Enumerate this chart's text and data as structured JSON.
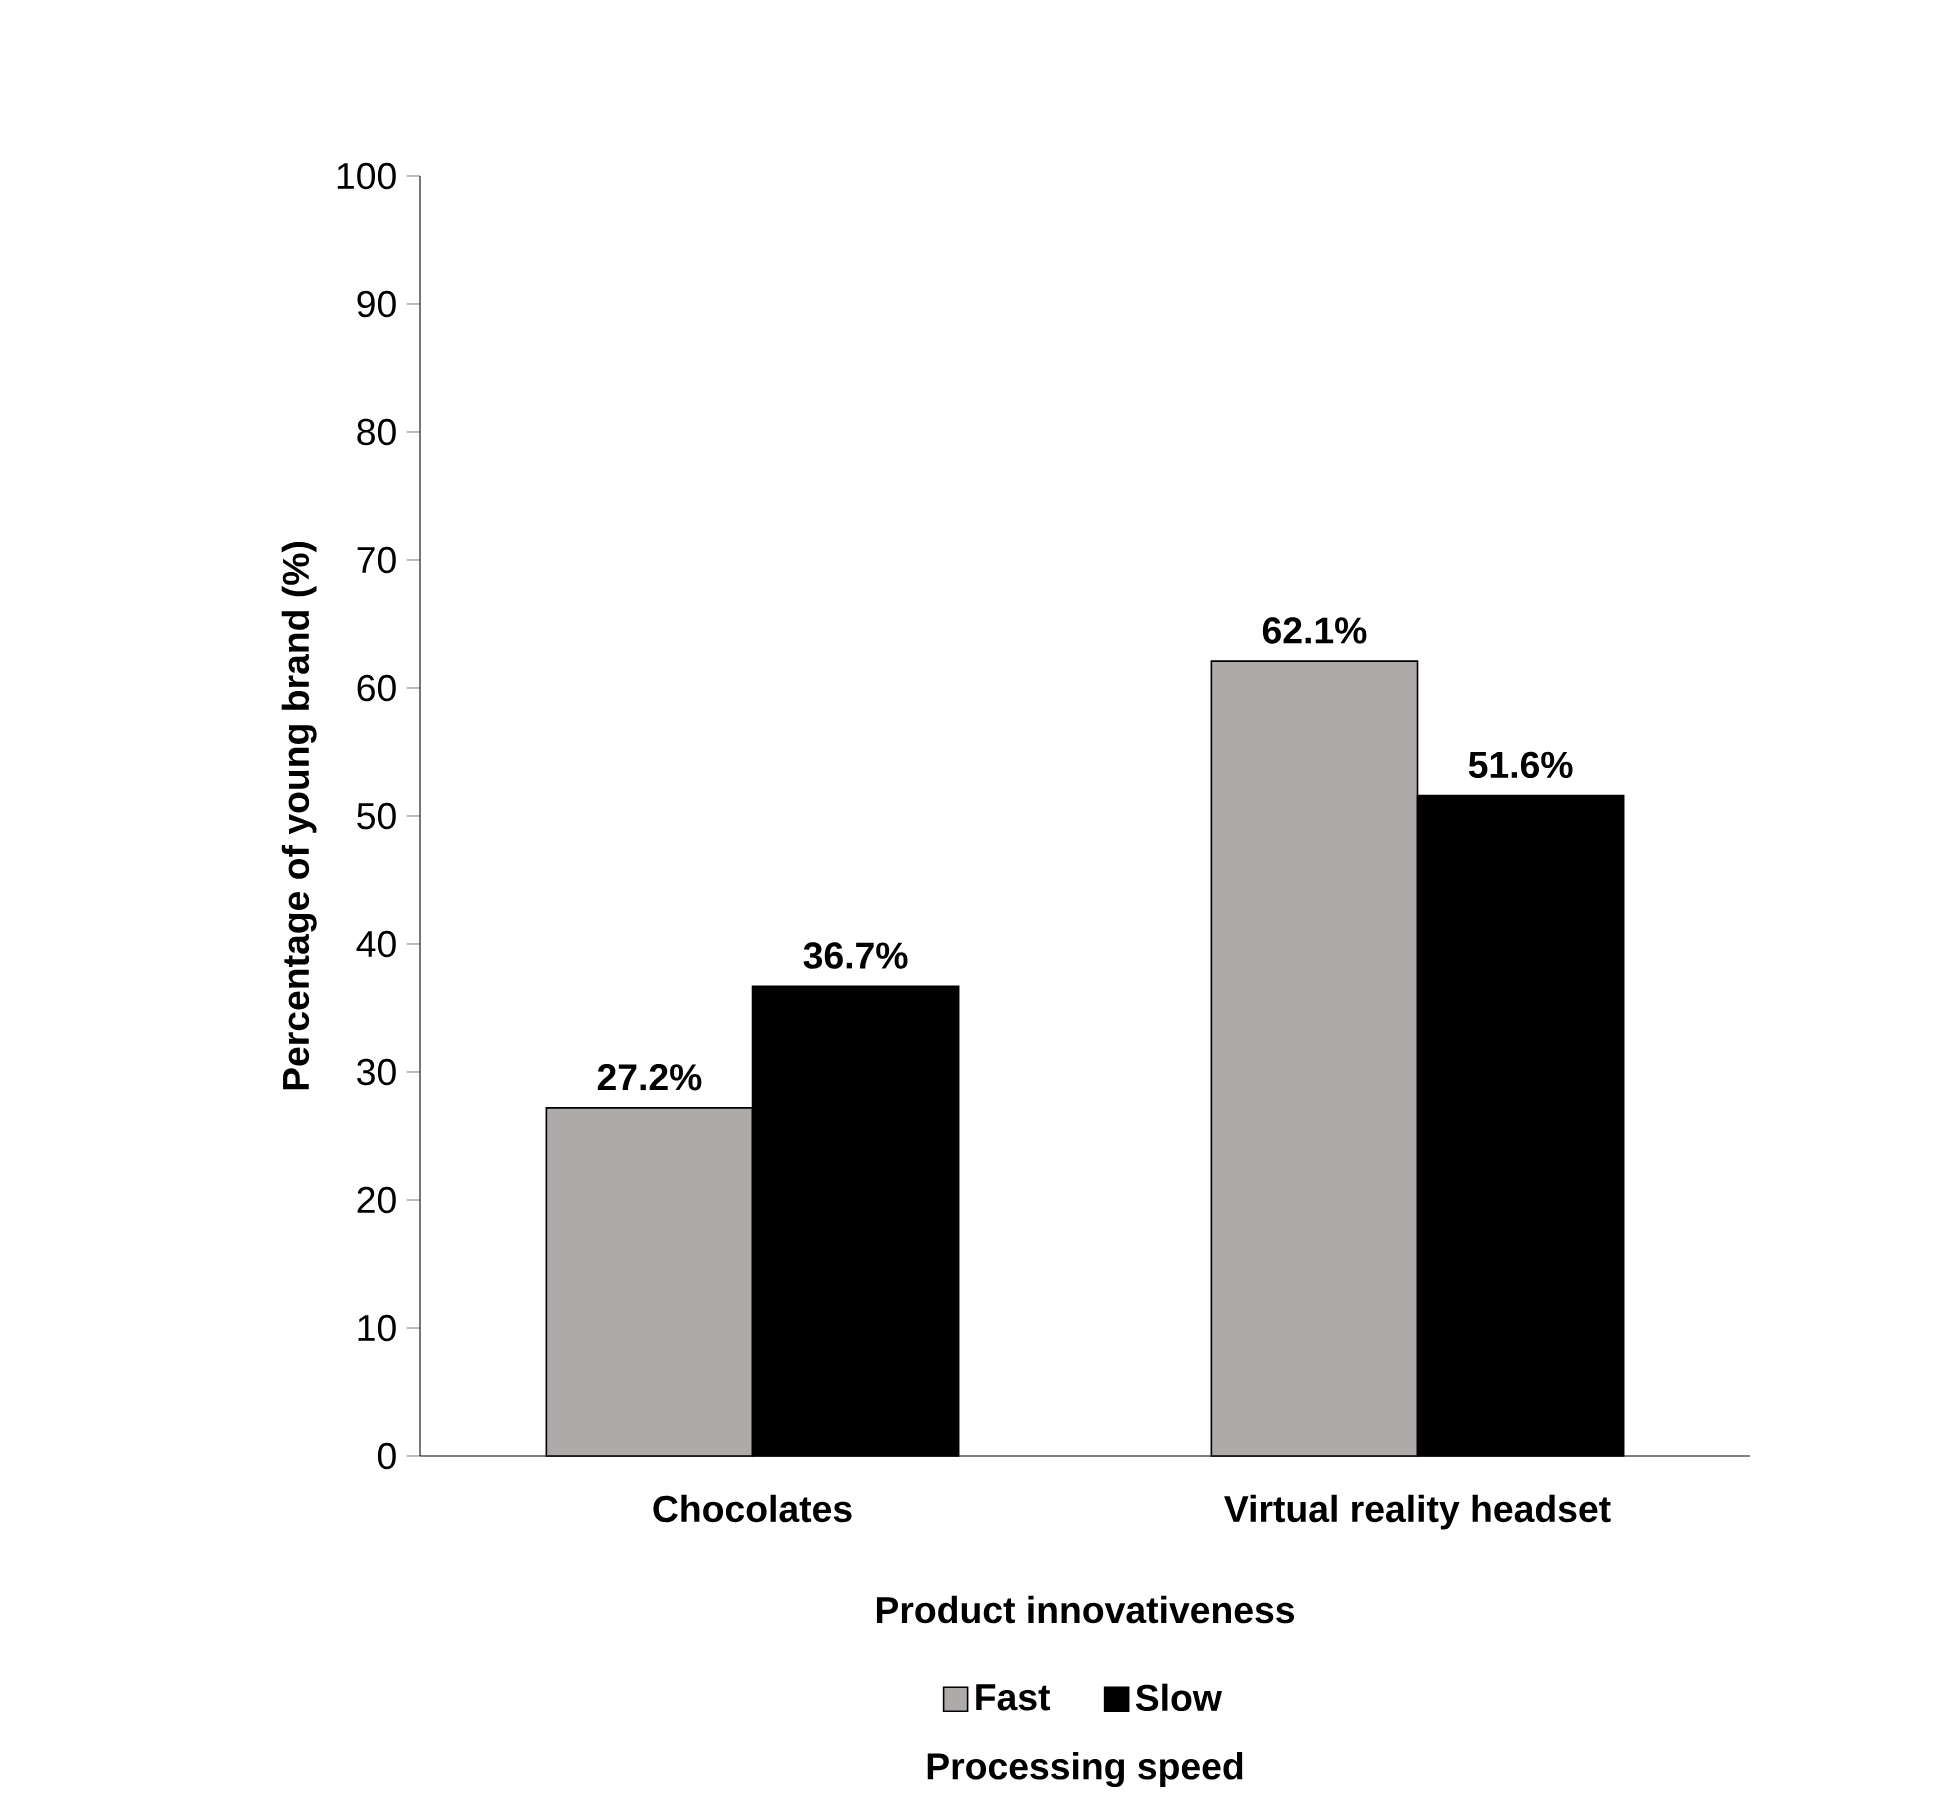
{
  "chart_data": {
    "type": "bar",
    "xlabel": "Product innovativeness",
    "ylabel": "Percentage of young brand (%)",
    "legend_title": "Processing speed",
    "categories": [
      "Chocolates",
      "Virtual reality headset"
    ],
    "series": [
      {
        "name": "Fast",
        "color": "#aeaaaa",
        "values": [
          27.2,
          62.1
        ],
        "value_labels": [
          "27.2%",
          "62.1%"
        ]
      },
      {
        "name": "Slow",
        "color": "#000000",
        "values": [
          36.7,
          51.6
        ],
        "value_labels": [
          "36.7%",
          "51.6%"
        ]
      }
    ],
    "ylim": [
      0,
      100
    ],
    "yticks": [
      0,
      10,
      20,
      30,
      40,
      50,
      60,
      70,
      80,
      90,
      100
    ],
    "legend": "bottom"
  }
}
